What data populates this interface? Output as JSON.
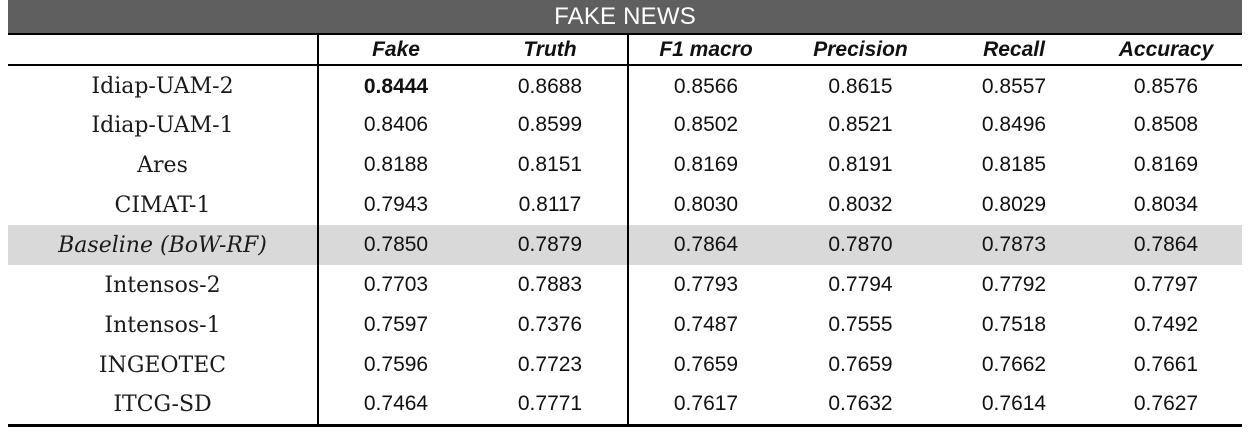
{
  "title": "FAKE NEWS",
  "headers": [
    "",
    "Fake",
    "Truth",
    "F1 macro",
    "Precision",
    "Recall",
    "Accuracy"
  ],
  "rows": [
    {
      "name": "Idiap-UAM-2",
      "fake": "0.8444",
      "truth": "0.8688",
      "f1_macro": "0.8566",
      "precision": "0.8615",
      "recall": "0.8557",
      "accuracy": "0.8576"
    },
    {
      "name": "Idiap-UAM-1",
      "fake": "0.8406",
      "truth": "0.8599",
      "f1_macro": "0.8502",
      "precision": "0.8521",
      "recall": "0.8496",
      "accuracy": "0.8508"
    },
    {
      "name": "Ares",
      "fake": "0.8188",
      "truth": "0.8151",
      "f1_macro": "0.8169",
      "precision": "0.8191",
      "recall": "0.8185",
      "accuracy": "0.8169"
    },
    {
      "name": "CIMAT-1",
      "fake": "0.7943",
      "truth": "0.8117",
      "f1_macro": "0.8030",
      "precision": "0.8032",
      "recall": "0.8029",
      "accuracy": "0.8034"
    },
    {
      "name": "Baseline (BoW-RF)",
      "fake": "0.7850",
      "truth": "0.7879",
      "f1_macro": "0.7864",
      "precision": "0.7870",
      "recall": "0.7873",
      "accuracy": "0.7864"
    },
    {
      "name": "Intensos-2",
      "fake": "0.7703",
      "truth": "0.7883",
      "f1_macro": "0.7793",
      "precision": "0.7794",
      "recall": "0.7792",
      "accuracy": "0.7797"
    },
    {
      "name": "Intensos-1",
      "fake": "0.7597",
      "truth": "0.7376",
      "f1_macro": "0.7487",
      "precision": "0.7555",
      "recall": "0.7518",
      "accuracy": "0.7492"
    },
    {
      "name": "INGEOTEC",
      "fake": "0.7596",
      "truth": "0.7723",
      "f1_macro": "0.7659",
      "precision": "0.7659",
      "recall": "0.7662",
      "accuracy": "0.7661"
    },
    {
      "name": "ITCG-SD",
      "fake": "0.7464",
      "truth": "0.7771",
      "f1_macro": "0.7617",
      "precision": "0.7632",
      "recall": "0.7614",
      "accuracy": "0.7627"
    }
  ],
  "colors": {
    "title_bar": "#5f5f5f",
    "baseline_row": "#d9d9d9"
  }
}
